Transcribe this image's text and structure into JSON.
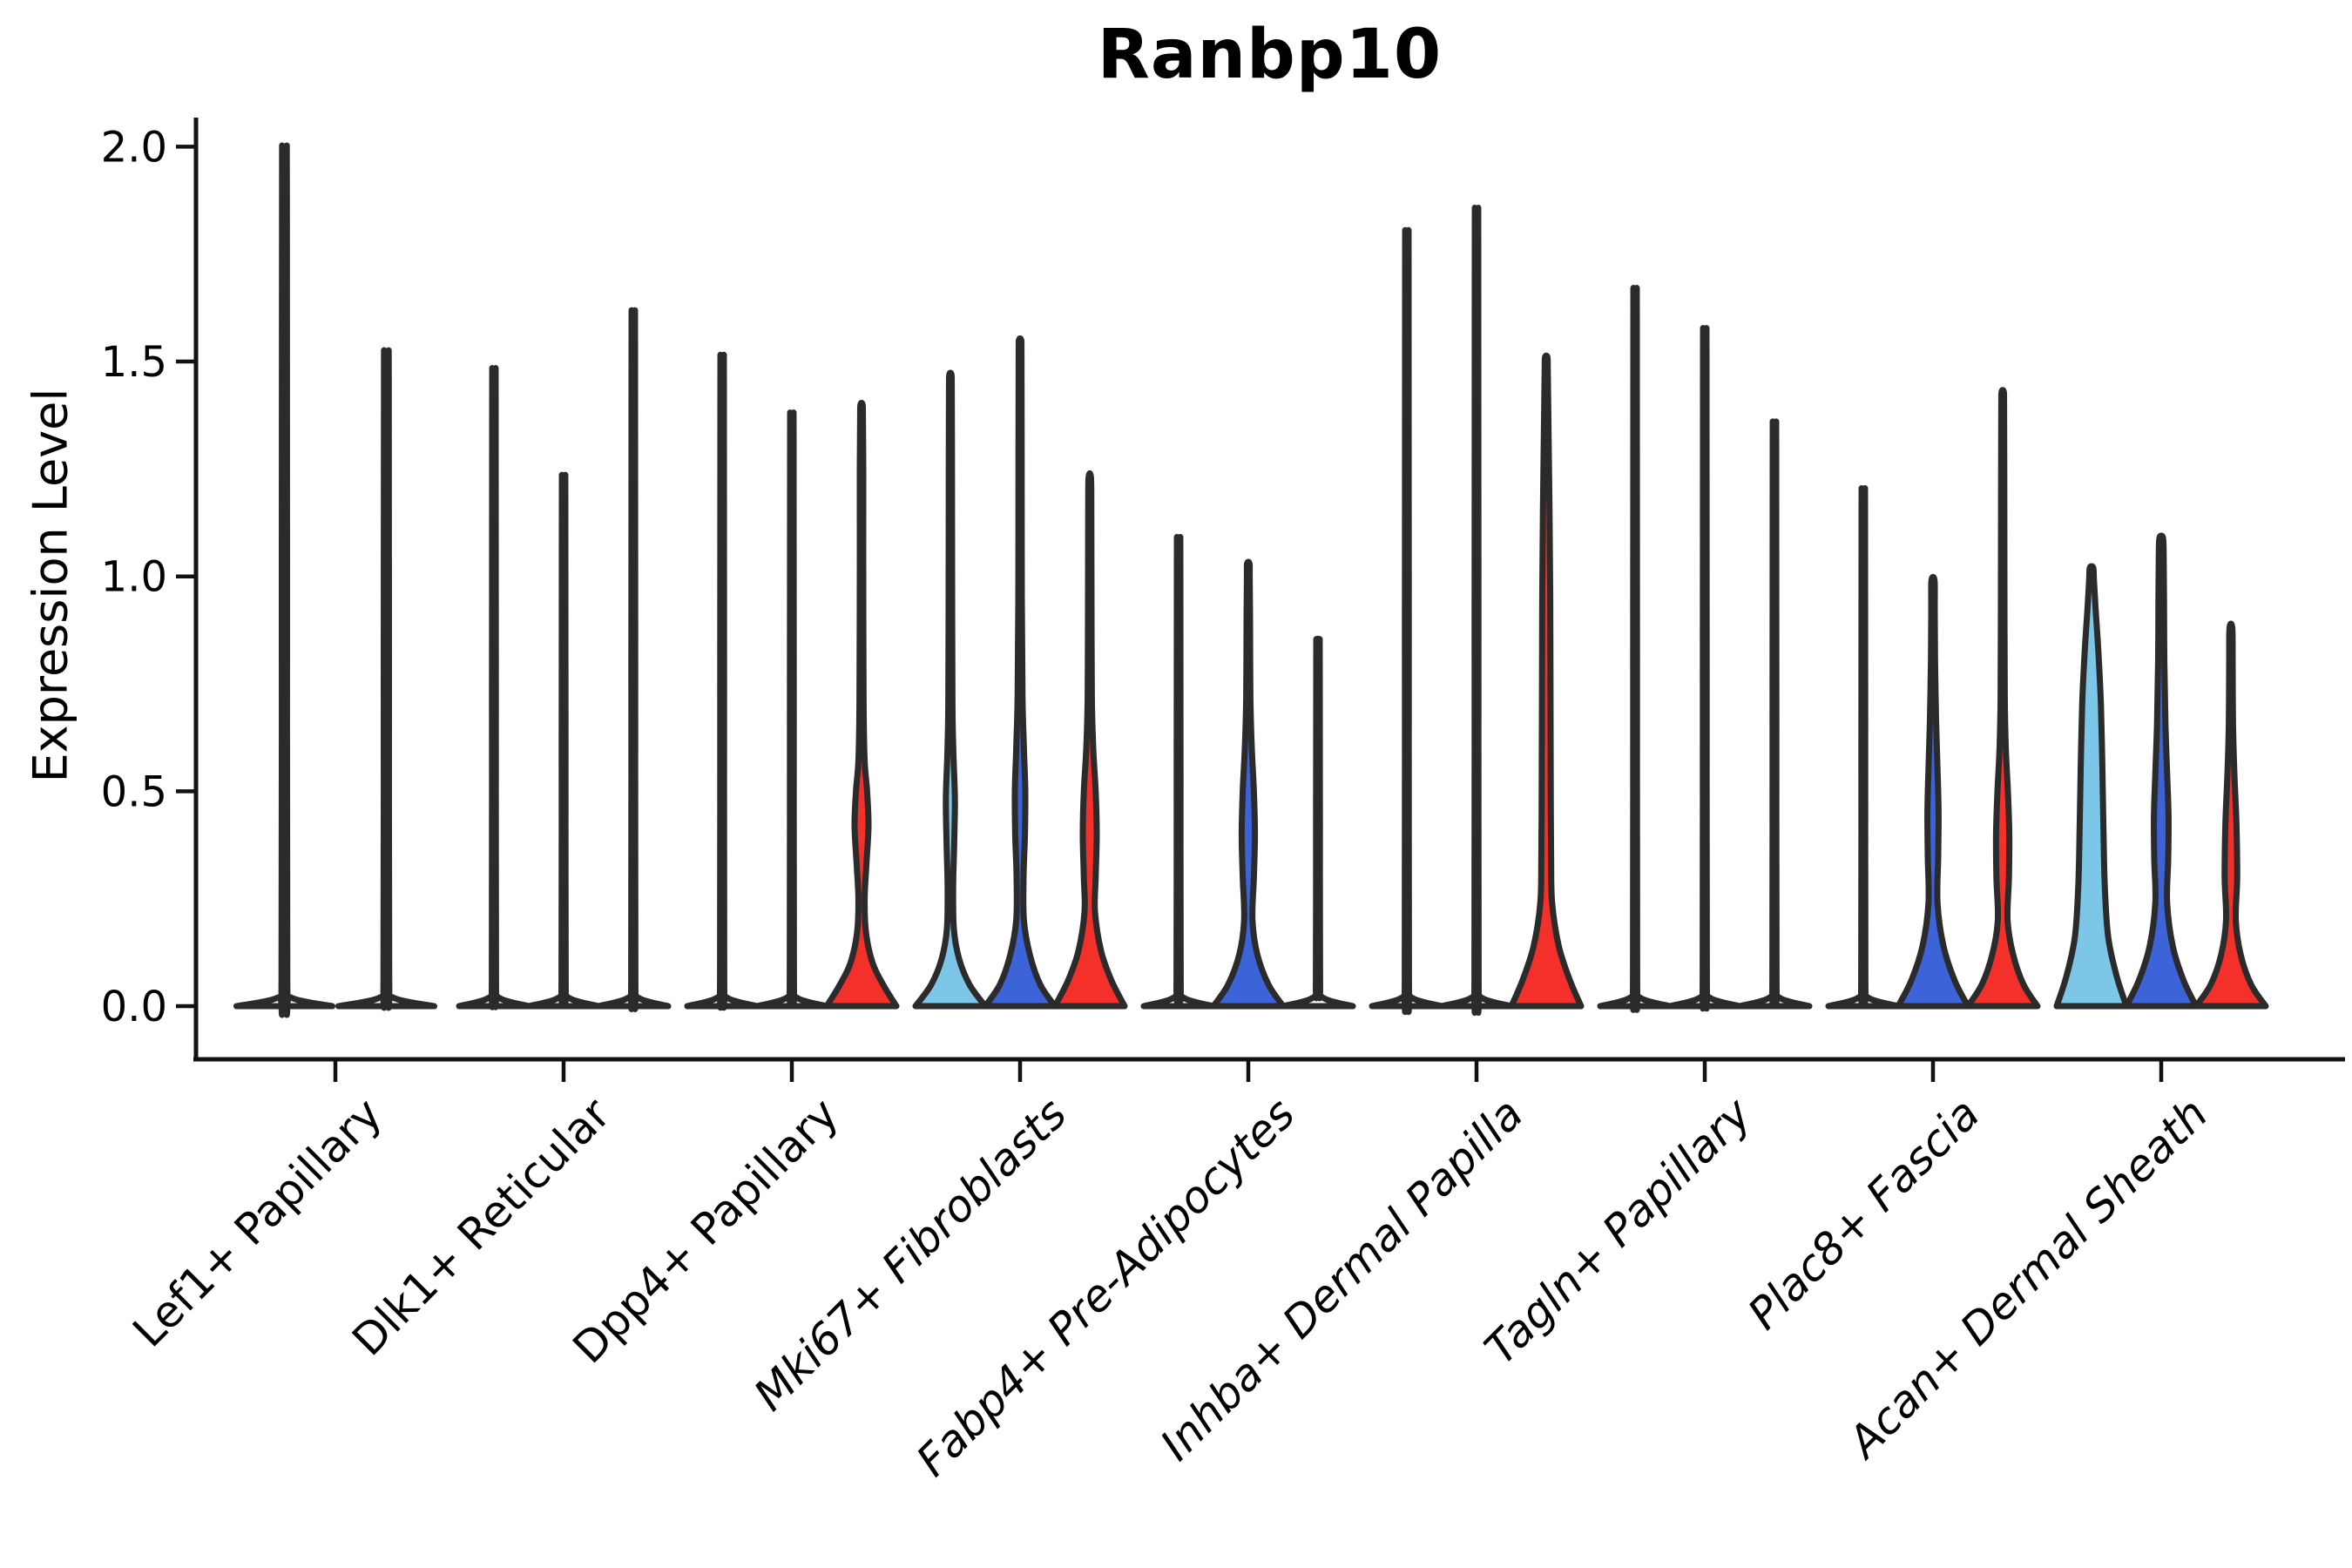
{
  "chart_data": {
    "type": "violin",
    "title": "Ranbp10",
    "ylabel": "Expression Level",
    "xlabel": "",
    "ylim": [
      0.0,
      2.05
    ],
    "yticks": [
      "0.0",
      "0.5",
      "1.0",
      "1.5",
      "2.0"
    ],
    "ytick_values": [
      0.0,
      0.5,
      1.0,
      1.5,
      2.0
    ],
    "grid": "off",
    "legend": "none",
    "palette": {
      "skyblue": "#7CC6E8",
      "blue": "#3D63D9",
      "red": "#F4302B",
      "outline": "#2B2B2B",
      "axis": "#111111"
    },
    "categories": [
      {
        "label": "Lef1+ Papillary",
        "italic": false,
        "violins": [
          {
            "color": null,
            "max": 1.96,
            "shape": "spike"
          },
          {
            "color": null,
            "max": 1.5,
            "shape": "spike"
          }
        ]
      },
      {
        "label": "Dlk1+ Reticular",
        "italic": false,
        "violins": [
          {
            "color": null,
            "max": 1.46,
            "shape": "spike"
          },
          {
            "color": null,
            "max": 1.22,
            "shape": "spike"
          },
          {
            "color": null,
            "max": 1.59,
            "shape": "spike"
          }
        ]
      },
      {
        "label": "Dpp4+ Papillary",
        "italic": false,
        "violins": [
          {
            "color": null,
            "max": 1.49,
            "shape": "spike"
          },
          {
            "color": null,
            "max": 1.36,
            "shape": "spike"
          },
          {
            "color": "red",
            "max": 1.4,
            "shape": "body",
            "profile": [
              [
                0,
                1
              ],
              [
                0.05,
                0.62
              ],
              [
                0.1,
                0.32
              ],
              [
                0.17,
                0.13
              ],
              [
                0.25,
                0.09
              ],
              [
                0.33,
                0.14
              ],
              [
                0.42,
                0.2
              ],
              [
                0.5,
                0.16
              ],
              [
                0.57,
                0.09
              ],
              [
                0.7,
                0.06
              ],
              [
                1.0,
                0.05
              ],
              [
                1.25,
                0.05
              ],
              [
                1.37,
                0.04
              ],
              [
                1.4,
                0.03
              ]
            ]
          }
        ]
      },
      {
        "label": "Mki67+ Fibroblasts",
        "italic": true,
        "violins": [
          {
            "color": "skyblue",
            "max": 1.47,
            "shape": "body",
            "profile": [
              [
                0,
                1
              ],
              [
                0.05,
                0.55
              ],
              [
                0.11,
                0.25
              ],
              [
                0.18,
                0.1
              ],
              [
                0.28,
                0.08
              ],
              [
                0.38,
                0.11
              ],
              [
                0.48,
                0.13
              ],
              [
                0.58,
                0.09
              ],
              [
                0.7,
                0.06
              ],
              [
                1.0,
                0.05
              ],
              [
                1.3,
                0.045
              ],
              [
                1.44,
                0.04
              ],
              [
                1.47,
                0.03
              ]
            ]
          },
          {
            "color": "blue",
            "max": 1.55,
            "shape": "body",
            "profile": [
              [
                0,
                1
              ],
              [
                0.05,
                0.58
              ],
              [
                0.12,
                0.28
              ],
              [
                0.2,
                0.11
              ],
              [
                0.3,
                0.1
              ],
              [
                0.4,
                0.14
              ],
              [
                0.5,
                0.15
              ],
              [
                0.6,
                0.11
              ],
              [
                0.72,
                0.07
              ],
              [
                0.95,
                0.05
              ],
              [
                1.3,
                0.045
              ],
              [
                1.52,
                0.04
              ],
              [
                1.55,
                0.03
              ]
            ]
          },
          {
            "color": "red",
            "max": 1.23,
            "shape": "body",
            "profile": [
              [
                0,
                1
              ],
              [
                0.06,
                0.62
              ],
              [
                0.13,
                0.32
              ],
              [
                0.22,
                0.15
              ],
              [
                0.3,
                0.17
              ],
              [
                0.4,
                0.2
              ],
              [
                0.5,
                0.17
              ],
              [
                0.6,
                0.1
              ],
              [
                0.72,
                0.06
              ],
              [
                0.95,
                0.05
              ],
              [
                1.15,
                0.045
              ],
              [
                1.23,
                0.035
              ]
            ]
          }
        ]
      },
      {
        "label": "Fabp4+ Pre-Adipocytes",
        "italic": true,
        "violins": [
          {
            "color": null,
            "max": 1.08,
            "shape": "spike"
          },
          {
            "color": "blue",
            "max": 1.03,
            "shape": "body",
            "profile": [
              [
                0,
                1
              ],
              [
                0.05,
                0.58
              ],
              [
                0.12,
                0.26
              ],
              [
                0.2,
                0.12
              ],
              [
                0.3,
                0.16
              ],
              [
                0.4,
                0.19
              ],
              [
                0.5,
                0.16
              ],
              [
                0.6,
                0.1
              ],
              [
                0.72,
                0.06
              ],
              [
                0.9,
                0.05
              ],
              [
                1.0,
                0.04
              ],
              [
                1.03,
                0.035
              ]
            ]
          },
          {
            "color": null,
            "max": 0.85,
            "shape": "spike"
          }
        ]
      },
      {
        "label": "Inhba+ Dermal Papilla",
        "italic": true,
        "violins": [
          {
            "color": null,
            "max": 1.77,
            "shape": "spike"
          },
          {
            "color": null,
            "max": 1.82,
            "shape": "spike"
          },
          {
            "color": "red",
            "max": 1.51,
            "shape": "body",
            "profile": [
              [
                0,
                1
              ],
              [
                0.06,
                0.68
              ],
              [
                0.14,
                0.36
              ],
              [
                0.24,
                0.17
              ],
              [
                0.35,
                0.14
              ],
              [
                0.5,
                0.13
              ],
              [
                0.65,
                0.125
              ],
              [
                0.8,
                0.12
              ],
              [
                0.95,
                0.115
              ],
              [
                1.1,
                0.1
              ],
              [
                1.25,
                0.08
              ],
              [
                1.38,
                0.06
              ],
              [
                1.48,
                0.045
              ],
              [
                1.51,
                0.035
              ]
            ]
          }
        ]
      },
      {
        "label": "Tagln+ Papillary",
        "italic": true,
        "violins": [
          {
            "color": null,
            "max": 1.64,
            "shape": "spike"
          },
          {
            "color": null,
            "max": 1.55,
            "shape": "spike"
          },
          {
            "color": null,
            "max": 1.34,
            "shape": "spike"
          }
        ]
      },
      {
        "label": "Plac8+ Fascia",
        "italic": true,
        "violins": [
          {
            "color": null,
            "max": 1.19,
            "shape": "spike"
          },
          {
            "color": "blue",
            "max": 0.99,
            "shape": "body",
            "profile": [
              [
                0,
                1
              ],
              [
                0.06,
                0.62
              ],
              [
                0.14,
                0.3
              ],
              [
                0.24,
                0.13
              ],
              [
                0.35,
                0.15
              ],
              [
                0.45,
                0.16
              ],
              [
                0.55,
                0.13
              ],
              [
                0.66,
                0.09
              ],
              [
                0.8,
                0.06
              ],
              [
                0.92,
                0.05
              ],
              [
                0.99,
                0.045
              ]
            ]
          },
          {
            "color": "red",
            "max": 1.43,
            "shape": "body",
            "profile": [
              [
                0,
                1
              ],
              [
                0.05,
                0.6
              ],
              [
                0.12,
                0.3
              ],
              [
                0.2,
                0.14
              ],
              [
                0.3,
                0.18
              ],
              [
                0.4,
                0.19
              ],
              [
                0.5,
                0.15
              ],
              [
                0.6,
                0.09
              ],
              [
                0.72,
                0.06
              ],
              [
                1.0,
                0.05
              ],
              [
                1.25,
                0.045
              ],
              [
                1.4,
                0.04
              ],
              [
                1.43,
                0.03
              ]
            ]
          }
        ]
      },
      {
        "label": "Acan+ Dermal Sheath",
        "italic": true,
        "violins": [
          {
            "color": "skyblue",
            "max": 1.02,
            "shape": "body",
            "profile": [
              [
                0,
                1
              ],
              [
                0.07,
                0.72
              ],
              [
                0.16,
                0.48
              ],
              [
                0.28,
                0.38
              ],
              [
                0.42,
                0.34
              ],
              [
                0.56,
                0.31
              ],
              [
                0.7,
                0.27
              ],
              [
                0.82,
                0.2
              ],
              [
                0.92,
                0.12
              ],
              [
                0.99,
                0.07
              ],
              [
                1.02,
                0.05
              ]
            ]
          },
          {
            "color": "blue",
            "max": 1.09,
            "shape": "body",
            "profile": [
              [
                0,
                1
              ],
              [
                0.06,
                0.64
              ],
              [
                0.14,
                0.33
              ],
              [
                0.24,
                0.17
              ],
              [
                0.34,
                0.2
              ],
              [
                0.44,
                0.21
              ],
              [
                0.54,
                0.17
              ],
              [
                0.66,
                0.12
              ],
              [
                0.8,
                0.09
              ],
              [
                0.95,
                0.08
              ],
              [
                1.05,
                0.07
              ],
              [
                1.09,
                0.05
              ]
            ]
          },
          {
            "color": "red",
            "max": 0.88,
            "shape": "body",
            "profile": [
              [
                0,
                1
              ],
              [
                0.05,
                0.58
              ],
              [
                0.12,
                0.28
              ],
              [
                0.2,
                0.14
              ],
              [
                0.3,
                0.18
              ],
              [
                0.42,
                0.16
              ],
              [
                0.54,
                0.1
              ],
              [
                0.66,
                0.06
              ],
              [
                0.8,
                0.05
              ],
              [
                0.88,
                0.04
              ]
            ]
          }
        ]
      }
    ]
  }
}
